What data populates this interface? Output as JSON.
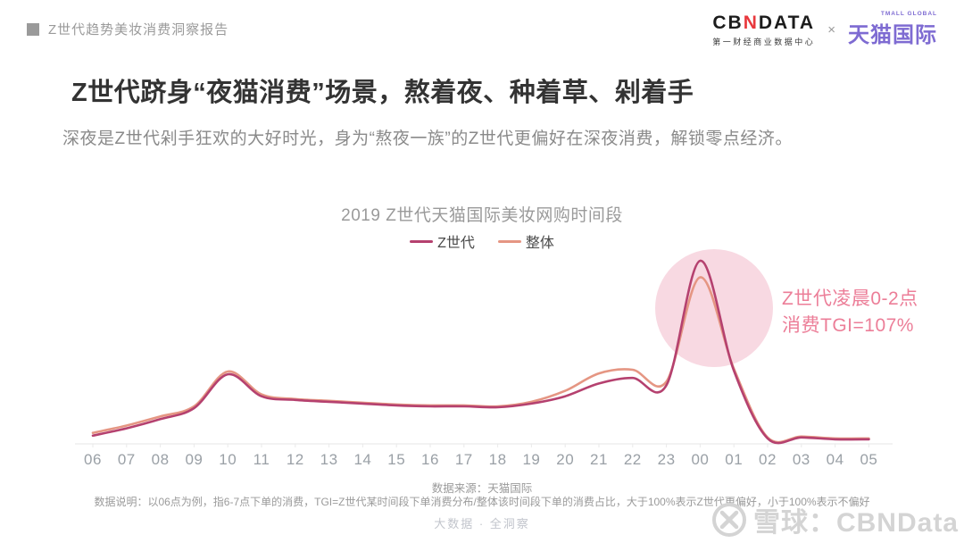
{
  "header": {
    "report_title": "Z世代趋势美妆消费洞察报告"
  },
  "logos": {
    "cbndata": {
      "part1": "CB",
      "part2": "N",
      "part3": "DATA",
      "subtitle": "第一财经商业数据中心"
    },
    "separator": "×",
    "tmall": {
      "name": "天猫国际",
      "subtitle": "TMALL GLOBAL"
    }
  },
  "main": {
    "title": "Z世代跻身“夜猫消费”场景，熬着夜、种着草、剁着手",
    "subtitle": "深夜是Z世代剁手狂欢的大好时光，身为“熬夜一族”的Z世代更偏好在深夜消费，解锁零点经济。"
  },
  "chart_data": {
    "type": "line",
    "title": "2019 Z世代天猫国际美妆网购时间段",
    "x": [
      "06",
      "07",
      "08",
      "09",
      "10",
      "11",
      "12",
      "13",
      "14",
      "15",
      "16",
      "17",
      "18",
      "19",
      "20",
      "21",
      "22",
      "23",
      "00",
      "01",
      "02",
      "03",
      "04",
      "05"
    ],
    "xlabel": "",
    "ylabel": "",
    "y_note": "relative share of orders per hour slot, estimated as % of Z世代 peak (no y-axis shown in figure)",
    "ylim": [
      0,
      105
    ],
    "grid": false,
    "legend_position": "top-center",
    "series": [
      {
        "name": "Z世代",
        "color": "#b5416f",
        "values": [
          4.5,
          8.5,
          13.5,
          19.5,
          38,
          26,
          24,
          23,
          22,
          21,
          20.5,
          20.5,
          20,
          22,
          26,
          33,
          36,
          32,
          100,
          40,
          3,
          3.5,
          2.5,
          2.5
        ]
      },
      {
        "name": "整体",
        "color": "#e59683",
        "values": [
          6,
          10,
          15,
          20.5,
          39.5,
          27,
          24.5,
          23.5,
          22.5,
          21.5,
          21,
          21,
          20.5,
          23,
          29,
          38.5,
          40.5,
          34,
          91,
          41,
          3.5,
          4,
          3,
          3
        ]
      }
    ],
    "annotation": {
      "line1": "Z世代凌晨0-2点",
      "line2": "消费TGI=107%",
      "highlighted_x": "00"
    }
  },
  "footer": {
    "source": "数据来源：天猫国际",
    "note": "数据说明：以06点为例，指6-7点下单的消费，TGI=Z世代某时间段下单消费分布/整体该时间段下单的消费占比，大于100%表示Z世代更偏好，小于100%表示不偏好",
    "tagline": "大数据 · 全洞察"
  },
  "watermark": {
    "text": "雪球：CBNData"
  },
  "colors": {
    "zgen_line": "#b5416f",
    "overall_line": "#e59683",
    "highlight_circle": "#f8d9e2",
    "annotation_text": "#ec7e98",
    "cbn_accent_red": "#e8383d",
    "tmall_purple": "#7e6bd2",
    "axis_line": "#eaeaea",
    "tick_label": "#9aa0a6"
  }
}
